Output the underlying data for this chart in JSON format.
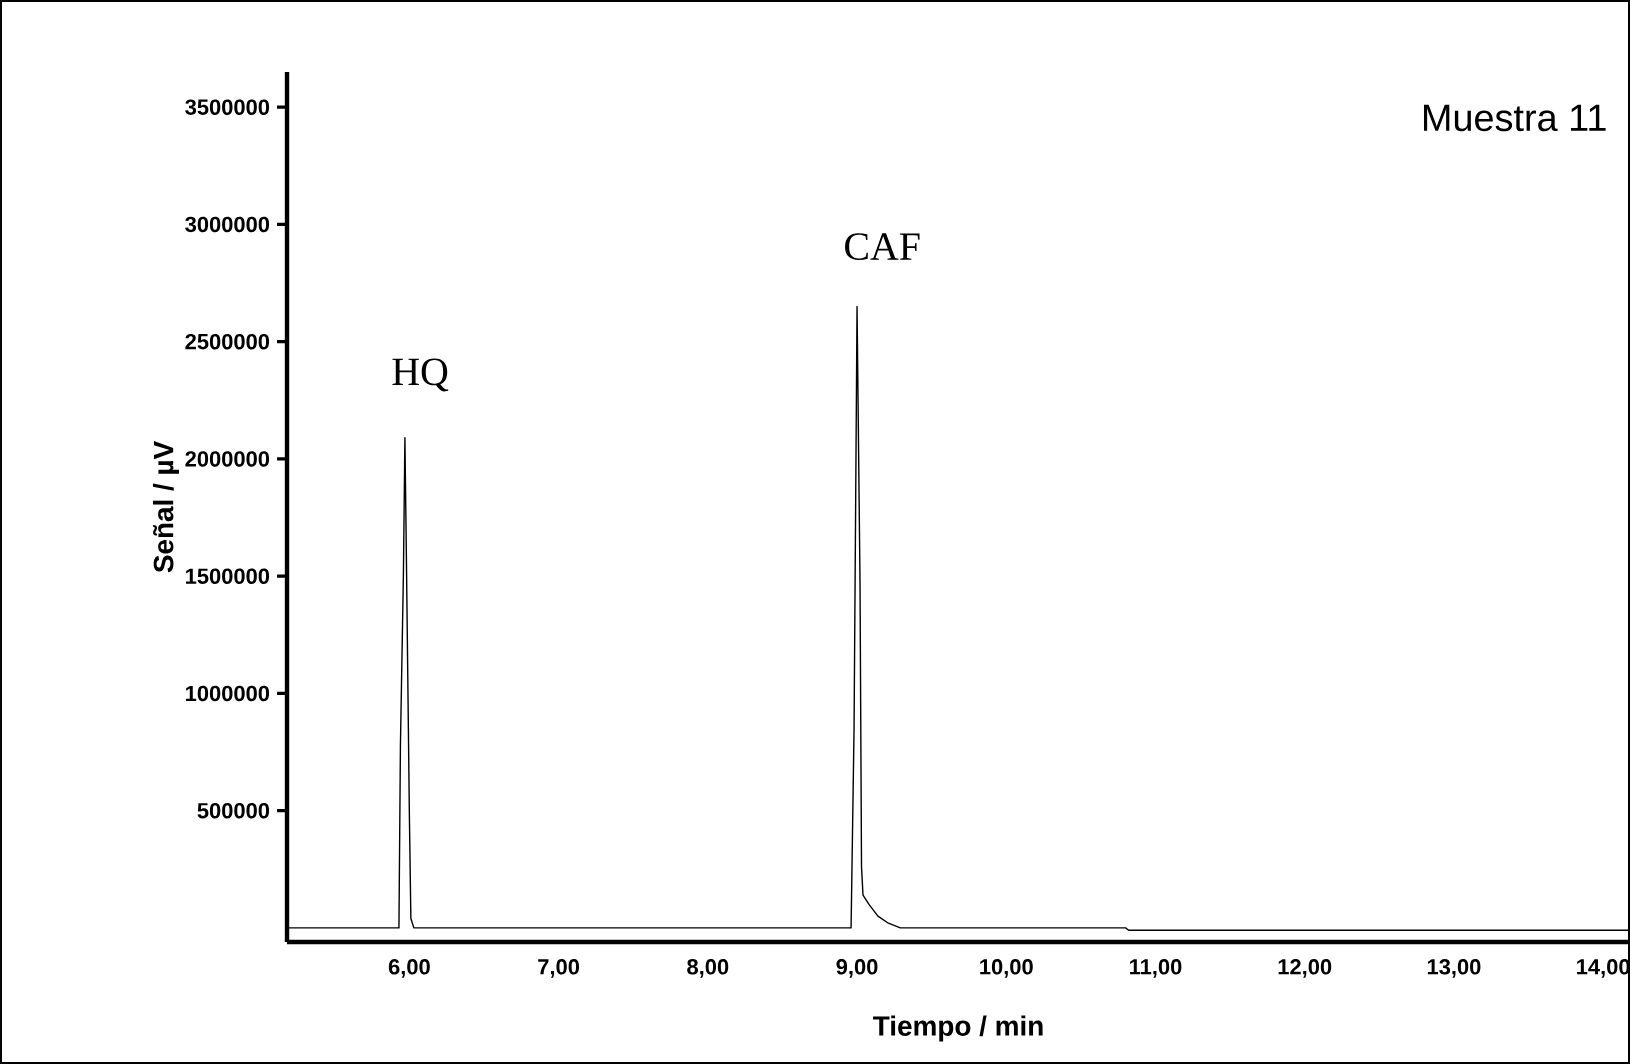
{
  "chart_data": {
    "type": "line",
    "xlabel": "Tiempo / min",
    "ylabel": "Señal / µV",
    "annotations": [
      {
        "text": "HQ",
        "x": 5.97,
        "y": 2090000
      },
      {
        "text": "CAF",
        "x": 9.0,
        "y": 2650000
      },
      "Muestra 11"
    ],
    "series": [
      {
        "color": "#000000",
        "x": [
          5.18,
          5.9,
          5.93,
          5.94,
          5.96,
          5.97,
          5.98,
          6.0,
          6.01,
          6.03,
          8.96,
          8.98,
          9.0,
          9.02,
          9.03,
          9.04,
          9.08,
          9.14,
          9.21,
          9.29,
          9.35,
          10.8,
          10.82,
          14.18
        ],
        "values": [
          0,
          0,
          0,
          780000,
          1510000,
          2090000,
          1580000,
          480000,
          40000,
          0,
          0,
          850000,
          2650000,
          1470000,
          260000,
          140000,
          100000,
          50000,
          20000,
          0,
          0,
          0,
          -10000,
          -10000
        ]
      }
    ],
    "xlim": [
      5.18,
      14.18
    ],
    "ylim": [
      -60000,
      3650000
    ],
    "xticks": [
      {
        "value": 6,
        "label": "6,00"
      },
      {
        "value": 7,
        "label": "7,00"
      },
      {
        "value": 8,
        "label": "8,00"
      },
      {
        "value": 9,
        "label": "9,00"
      },
      {
        "value": 10,
        "label": "10,00"
      },
      {
        "value": 11,
        "label": "11,00"
      },
      {
        "value": 12,
        "label": "12,00"
      },
      {
        "value": 13,
        "label": "13,00"
      },
      {
        "value": 14,
        "label": "14,00"
      }
    ],
    "yticks": [
      500000,
      1000000,
      1500000,
      2000000,
      2500000,
      3000000,
      3500000
    ],
    "marker": "none",
    "line_style": "solid"
  }
}
